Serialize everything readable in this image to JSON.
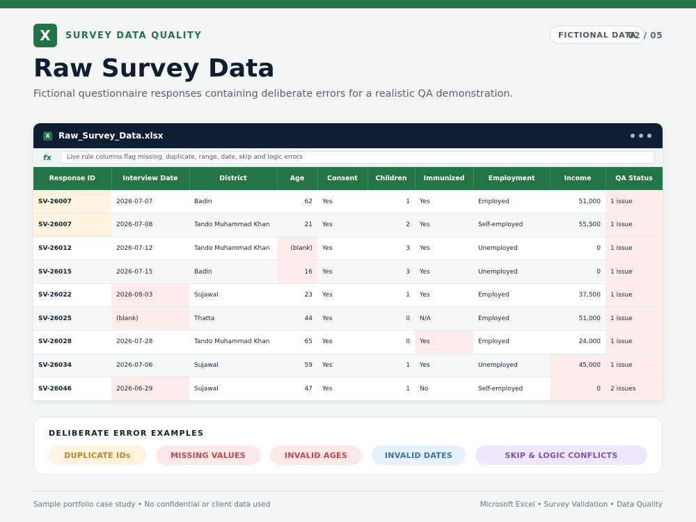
{
  "header": {
    "logo_letter": "X",
    "brand": "SURVEY DATA QUALITY",
    "badge": "FICTIONAL DATA",
    "pager": "02 / 05",
    "title": "Raw Survey Data",
    "subtitle": "Fictional questionnaire responses containing deliberate errors for a realistic QA demonstration."
  },
  "sheet": {
    "file_icon": "X",
    "file_name": "Raw_Survey_Data.xlsx",
    "fx_label": "fx",
    "formula": "Live rule columns flag missing, duplicate, range, date, skip and logic errors",
    "columns": [
      "Response ID",
      "Interview Date",
      "District",
      "Age",
      "Consent",
      "Children",
      "Immunized",
      "Employment",
      "Income",
      "QA Status"
    ],
    "rows": [
      [
        "SV-26007",
        "2026-07-07",
        "Badin",
        "62",
        "Yes",
        "1",
        "Yes",
        "Employed",
        "51,000",
        "1 issue"
      ],
      [
        "SV-26007",
        "2026-07-08",
        "Tando Muhammad Khan",
        "21",
        "Yes",
        "2",
        "Yes",
        "Self-employed",
        "55,500",
        "1 issue"
      ],
      [
        "SV-26012",
        "2026-07-12",
        "Tando Muhammad Khan",
        "(blank)",
        "Yes",
        "3",
        "Yes",
        "Unemployed",
        "0",
        "1 issue"
      ],
      [
        "SV-26015",
        "2026-07-15",
        "Badin",
        "16",
        "Yes",
        "3",
        "Yes",
        "Unemployed",
        "0",
        "1 issue"
      ],
      [
        "SV-26022",
        "2026-08-03",
        "Sujawal",
        "23",
        "Yes",
        "1",
        "Yes",
        "Employed",
        "37,500",
        "1 issue"
      ],
      [
        "SV-26025",
        "(blank)",
        "Thatta",
        "44",
        "Yes",
        "0",
        "N/A",
        "Employed",
        "51,000",
        "1 issue"
      ],
      [
        "SV-26028",
        "2026-07-28",
        "Tando Muhammad Khan",
        "65",
        "Yes",
        "0",
        "Yes",
        "Employed",
        "24,000",
        "1 issue"
      ],
      [
        "SV-26034",
        "2026-07-06",
        "Sujawal",
        "59",
        "Yes",
        "1",
        "Yes",
        "Unemployed",
        "45,000",
        "1 issue"
      ],
      [
        "SV-26046",
        "2026-06-29",
        "Sujawal",
        "47",
        "Yes",
        "1",
        "No",
        "Self-employed",
        "0",
        "2 issues"
      ]
    ],
    "flags": [
      [
        "dup",
        "",
        "",
        "",
        "",
        "",
        "",
        "",
        "",
        "err"
      ],
      [
        "dup",
        "",
        "",
        "",
        "",
        "",
        "",
        "",
        "",
        "err"
      ],
      [
        "",
        "",
        "",
        "err",
        "",
        "",
        "",
        "",
        "",
        "err"
      ],
      [
        "",
        "",
        "",
        "err",
        "",
        "",
        "",
        "",
        "",
        "err"
      ],
      [
        "",
        "err",
        "",
        "",
        "",
        "",
        "",
        "",
        "",
        "err"
      ],
      [
        "",
        "err",
        "",
        "",
        "",
        "",
        "",
        "",
        "",
        "err"
      ],
      [
        "",
        "",
        "",
        "",
        "",
        "",
        "err",
        "",
        "",
        "err"
      ],
      [
        "",
        "",
        "",
        "",
        "",
        "",
        "",
        "",
        "err",
        "err"
      ],
      [
        "",
        "err",
        "",
        "",
        "",
        "",
        "",
        "",
        "err",
        "err"
      ]
    ]
  },
  "errors": {
    "title": "DELIBERATE ERROR EXAMPLES",
    "pills": [
      {
        "label": "DUPLICATE IDs",
        "color": "#c9821f",
        "bg": "#fdf3df"
      },
      {
        "label": "MISSING VALUES",
        "color": "#c94343",
        "bg": "#fde8e8"
      },
      {
        "label": "INVALID AGES",
        "color": "#c94343",
        "bg": "#fde8e8"
      },
      {
        "label": "INVALID DATES",
        "color": "#2f6fd0",
        "bg": "#e7f0fd"
      },
      {
        "label": "SKIP & LOGIC CONFLICTS",
        "color": "#7a4fc4",
        "bg": "#efe7fd"
      }
    ]
  },
  "footer": {
    "left": "Sample portfolio case study • No confidential or client data used",
    "right": "Microsoft Excel • Survey Validation • Data Quality"
  },
  "colors": {
    "brand_green": "#237446",
    "header_navy": "#0f1e33",
    "duplicate_fill": "#fdf3df",
    "error_fill": "#fdecec"
  }
}
